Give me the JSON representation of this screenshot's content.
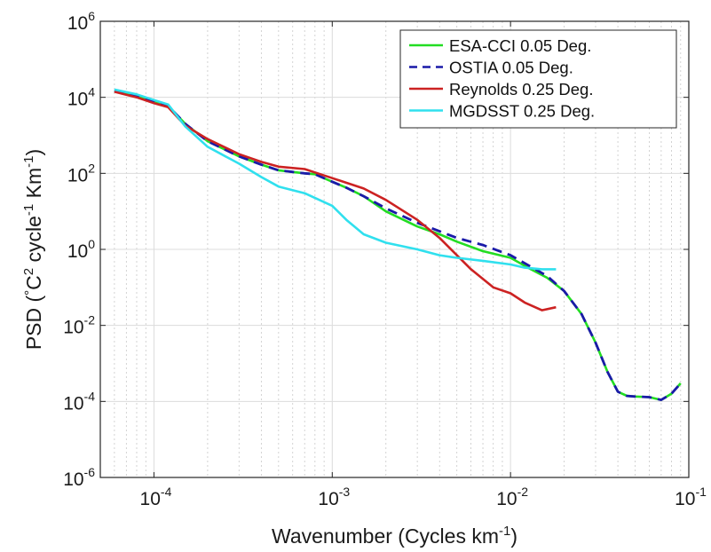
{
  "chart_data": {
    "type": "line",
    "title": "",
    "xlabel": {
      "prefix": "Wavenumber (Cycles km",
      "sup": "-1",
      "suffix": ")"
    },
    "ylabel": {
      "p1": "PSD (",
      "deg": "°",
      "p2": "C",
      "sup1": "2",
      "p3": " cycle",
      "sup2": "-1",
      "p4": " Km",
      "sup3": "-1",
      "p5": ")"
    },
    "x_scale": "log",
    "y_scale": "log",
    "xlim": [
      5e-05,
      0.1
    ],
    "ylim": [
      1e-06,
      1000000
    ],
    "x_ticks": [
      {
        "base": "10",
        "exp": "-4",
        "value": 0.0001
      },
      {
        "base": "10",
        "exp": "-3",
        "value": 0.001
      },
      {
        "base": "10",
        "exp": "-2",
        "value": 0.01
      },
      {
        "base": "10",
        "exp": "-1",
        "value": 0.1
      }
    ],
    "y_ticks": [
      {
        "base": "10",
        "exp": "-6",
        "value": 1e-06
      },
      {
        "base": "10",
        "exp": "-4",
        "value": 0.0001
      },
      {
        "base": "10",
        "exp": "-2",
        "value": 0.01
      },
      {
        "base": "10",
        "exp": "0",
        "value": 1
      },
      {
        "base": "10",
        "exp": "2",
        "value": 100
      },
      {
        "base": "10",
        "exp": "4",
        "value": 10000
      },
      {
        "base": "10",
        "exp": "6",
        "value": 1000000
      }
    ],
    "grid": true,
    "legend_position": "top-right",
    "series": [
      {
        "name": "ESA-CCI 0.05 Deg.",
        "color": "#22dd22",
        "dash": "solid",
        "points": [
          [
            6e-05,
            15000
          ],
          [
            8e-05,
            11000
          ],
          [
            0.0001,
            8000
          ],
          [
            0.00012,
            6000
          ],
          [
            0.00015,
            2000
          ],
          [
            0.0002,
            700
          ],
          [
            0.0003,
            280
          ],
          [
            0.0004,
            170
          ],
          [
            0.0005,
            120
          ],
          [
            0.0007,
            100
          ],
          [
            0.0008,
            95
          ],
          [
            0.001,
            60
          ],
          [
            0.0012,
            42
          ],
          [
            0.0015,
            25
          ],
          [
            0.002,
            10
          ],
          [
            0.003,
            4
          ],
          [
            0.004,
            2.5
          ],
          [
            0.005,
            1.6
          ],
          [
            0.007,
            0.9
          ],
          [
            0.01,
            0.6
          ],
          [
            0.013,
            0.3
          ],
          [
            0.016,
            0.18
          ],
          [
            0.02,
            0.08
          ],
          [
            0.025,
            0.02
          ],
          [
            0.03,
            0.0035
          ],
          [
            0.035,
            0.0006
          ],
          [
            0.04,
            0.00018
          ],
          [
            0.045,
            0.00014
          ],
          [
            0.05,
            0.000135
          ],
          [
            0.06,
            0.00013
          ],
          [
            0.07,
            0.00011
          ],
          [
            0.08,
            0.00016
          ],
          [
            0.09,
            0.0003
          ]
        ]
      },
      {
        "name": "OSTIA 0.05 Deg.",
        "color": "#1a1aa8",
        "dash": "dashed",
        "points": [
          [
            6e-05,
            15000
          ],
          [
            8e-05,
            11000
          ],
          [
            0.0001,
            8000
          ],
          [
            0.00012,
            6000
          ],
          [
            0.00015,
            2000
          ],
          [
            0.0002,
            700
          ],
          [
            0.0003,
            280
          ],
          [
            0.0004,
            170
          ],
          [
            0.0005,
            120
          ],
          [
            0.0007,
            100
          ],
          [
            0.0008,
            95
          ],
          [
            0.001,
            60
          ],
          [
            0.0012,
            42
          ],
          [
            0.0015,
            25
          ],
          [
            0.002,
            12
          ],
          [
            0.003,
            5
          ],
          [
            0.004,
            3
          ],
          [
            0.005,
            2
          ],
          [
            0.007,
            1.3
          ],
          [
            0.01,
            0.7
          ],
          [
            0.013,
            0.35
          ],
          [
            0.016,
            0.2
          ],
          [
            0.02,
            0.08
          ],
          [
            0.025,
            0.02
          ],
          [
            0.03,
            0.0035
          ],
          [
            0.035,
            0.0006
          ],
          [
            0.04,
            0.00018
          ],
          [
            0.045,
            0.00014
          ],
          [
            0.05,
            0.000135
          ],
          [
            0.06,
            0.00013
          ],
          [
            0.07,
            0.00011
          ],
          [
            0.08,
            0.00016
          ],
          [
            0.09,
            0.0003
          ]
        ]
      },
      {
        "name": "Reynolds 0.25 Deg.",
        "color": "#cc2222",
        "dash": "solid",
        "points": [
          [
            6e-05,
            14000
          ],
          [
            8e-05,
            10000
          ],
          [
            0.0001,
            7000
          ],
          [
            0.00012,
            5500
          ],
          [
            0.00015,
            1800
          ],
          [
            0.0002,
            800
          ],
          [
            0.0003,
            320
          ],
          [
            0.0004,
            200
          ],
          [
            0.0005,
            150
          ],
          [
            0.0007,
            130
          ],
          [
            0.001,
            75
          ],
          [
            0.0015,
            40
          ],
          [
            0.002,
            20
          ],
          [
            0.003,
            6
          ],
          [
            0.004,
            2
          ],
          [
            0.005,
            0.7
          ],
          [
            0.006,
            0.3
          ],
          [
            0.008,
            0.1
          ],
          [
            0.01,
            0.07
          ],
          [
            0.012,
            0.04
          ],
          [
            0.015,
            0.025
          ],
          [
            0.018,
            0.03
          ]
        ]
      },
      {
        "name": "MGDSST 0.25 Deg.",
        "color": "#30e0ee",
        "dash": "solid",
        "points": [
          [
            6e-05,
            16000
          ],
          [
            8e-05,
            12000
          ],
          [
            0.0001,
            8500
          ],
          [
            0.00012,
            6500
          ],
          [
            0.00015,
            1700
          ],
          [
            0.0002,
            500
          ],
          [
            0.0003,
            180
          ],
          [
            0.0004,
            80
          ],
          [
            0.0005,
            45
          ],
          [
            0.0007,
            30
          ],
          [
            0.001,
            14
          ],
          [
            0.0012,
            6
          ],
          [
            0.0015,
            2.5
          ],
          [
            0.002,
            1.5
          ],
          [
            0.003,
            1
          ],
          [
            0.004,
            0.7
          ],
          [
            0.005,
            0.6
          ],
          [
            0.007,
            0.5
          ],
          [
            0.01,
            0.4
          ],
          [
            0.012,
            0.33
          ],
          [
            0.015,
            0.3
          ],
          [
            0.018,
            0.3
          ]
        ]
      }
    ]
  }
}
